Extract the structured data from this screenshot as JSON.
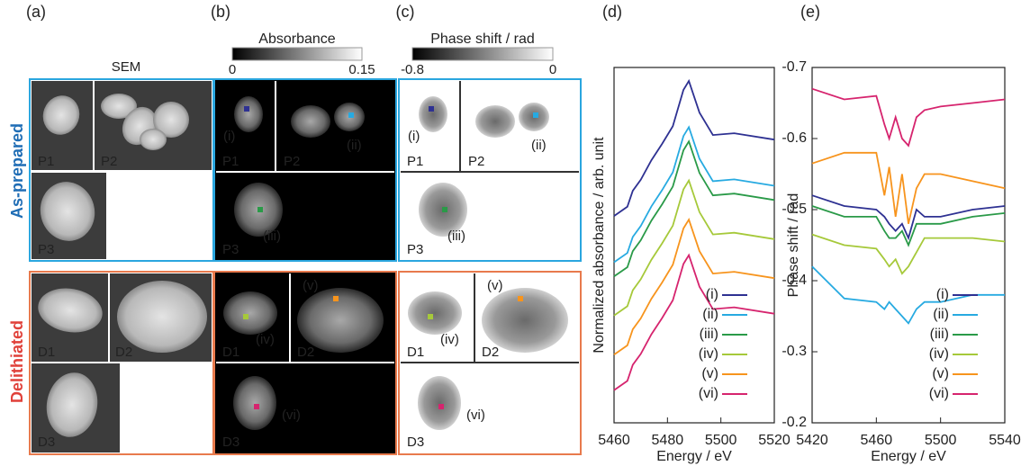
{
  "panel_labels": [
    "(a)",
    "(b)",
    "(c)",
    "(d)",
    "(e)"
  ],
  "sem_title": "SEM",
  "rows": [
    "As-prepared",
    "Delithiated"
  ],
  "particles": [
    "P1",
    "P2",
    "P3",
    "D1",
    "D2",
    "D3"
  ],
  "colorbars": [
    {
      "title": "Absorbance",
      "lim": [
        0,
        0.15
      ],
      "ticks": [
        0,
        0.15
      ]
    },
    {
      "title": "Phase shift / rad",
      "lim": [
        -0.8,
        0
      ],
      "ticks": [
        -0.8,
        0
      ]
    }
  ],
  "chart_data": [
    {
      "type": "line",
      "ylabel": "Normalized absorbance / arb. unit",
      "xlabel": "Energy / eV",
      "xlim": [
        5460,
        5520
      ],
      "xticks": [
        5460,
        5480,
        5500,
        5520
      ],
      "ylim": [
        0,
        10
      ],
      "legend": "lower right",
      "x": [
        5460,
        5465,
        5467,
        5470,
        5474,
        5478,
        5482,
        5486,
        5488,
        5492,
        5497,
        5505,
        5520
      ],
      "series": [
        {
          "name": "(i)",
          "color": "#2e3192",
          "values": [
            5.82,
            6.08,
            6.53,
            6.84,
            7.39,
            7.85,
            8.35,
            9.37,
            9.62,
            8.73,
            8.1,
            8.15,
            7.97
          ]
        },
        {
          "name": "(ii)",
          "color": "#27aae1",
          "values": [
            4.52,
            4.78,
            5.23,
            5.54,
            6.09,
            6.55,
            7.05,
            8.07,
            8.32,
            7.43,
            6.8,
            6.85,
            6.67
          ]
        },
        {
          "name": "(iii)",
          "color": "#2a9a48",
          "values": [
            4.12,
            4.38,
            4.83,
            5.14,
            5.69,
            6.15,
            6.65,
            7.67,
            7.92,
            7.03,
            6.4,
            6.45,
            6.27
          ]
        },
        {
          "name": "(iv)",
          "color": "#a6c93a",
          "values": [
            3.02,
            3.28,
            3.73,
            4.04,
            4.59,
            5.05,
            5.55,
            6.57,
            6.82,
            5.93,
            5.3,
            5.35,
            5.17
          ]
        },
        {
          "name": "(v)",
          "color": "#f7941d",
          "values": [
            1.92,
            2.18,
            2.63,
            2.94,
            3.49,
            3.95,
            4.45,
            5.47,
            5.72,
            4.83,
            4.2,
            4.25,
            4.07
          ]
        },
        {
          "name": "(vi)",
          "color": "#d6246e",
          "values": [
            0.92,
            1.18,
            1.63,
            1.94,
            2.49,
            2.95,
            3.45,
            4.47,
            4.72,
            3.83,
            3.2,
            3.25,
            3.07
          ]
        }
      ]
    },
    {
      "type": "line",
      "ylabel": "Phase shift / rad",
      "xlabel": "Energy / eV",
      "xlim": [
        5420,
        5540
      ],
      "xticks": [
        5420,
        5460,
        5500,
        5540
      ],
      "ylim": [
        -0.2,
        -0.7
      ],
      "yticks": [
        -0.7,
        -0.6,
        -0.5,
        -0.4,
        -0.3,
        -0.2
      ],
      "legend": "lower right",
      "x": [
        5420,
        5440,
        5460,
        5465,
        5468,
        5472,
        5476,
        5480,
        5485,
        5490,
        5500,
        5520,
        5540
      ],
      "series": [
        {
          "name": "(i)",
          "color": "#2e3192",
          "values": [
            -0.52,
            -0.505,
            -0.5,
            -0.49,
            -0.48,
            -0.47,
            -0.48,
            -0.46,
            -0.5,
            -0.49,
            -0.49,
            -0.5,
            -0.505
          ]
        },
        {
          "name": "(ii)",
          "color": "#27aae1",
          "values": [
            -0.42,
            -0.375,
            -0.37,
            -0.36,
            -0.37,
            -0.36,
            -0.35,
            -0.34,
            -0.36,
            -0.37,
            -0.37,
            -0.38,
            -0.38
          ]
        },
        {
          "name": "(iii)",
          "color": "#2a9a48",
          "values": [
            -0.505,
            -0.49,
            -0.49,
            -0.47,
            -0.46,
            -0.46,
            -0.47,
            -0.45,
            -0.48,
            -0.48,
            -0.48,
            -0.49,
            -0.495
          ]
        },
        {
          "name": "(iv)",
          "color": "#a6c93a",
          "values": [
            -0.465,
            -0.45,
            -0.445,
            -0.43,
            -0.42,
            -0.43,
            -0.41,
            -0.42,
            -0.44,
            -0.46,
            -0.46,
            -0.46,
            -0.455
          ]
        },
        {
          "name": "(v)",
          "color": "#f7941d",
          "values": [
            -0.565,
            -0.58,
            -0.58,
            -0.52,
            -0.56,
            -0.49,
            -0.55,
            -0.48,
            -0.53,
            -0.55,
            -0.55,
            -0.54,
            -0.53
          ]
        },
        {
          "name": "(vi)",
          "color": "#d6246e",
          "values": [
            -0.67,
            -0.655,
            -0.66,
            -0.62,
            -0.6,
            -0.63,
            -0.6,
            -0.59,
            -0.63,
            -0.64,
            -0.645,
            -0.65,
            -0.655
          ]
        }
      ]
    }
  ]
}
